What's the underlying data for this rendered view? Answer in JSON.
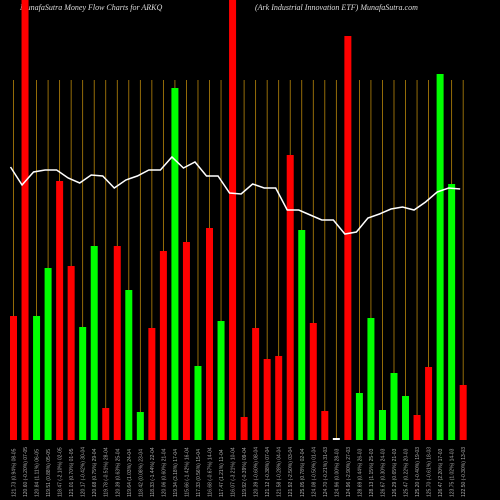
{
  "chart_data": {
    "type": "bar",
    "title": "MunafaSutra  Money Flow  Charts for ARKQ",
    "subtitle": "(Ark Industrial Innovation  ETF) MunafaSutra.com",
    "categories": [
      "121.73 (0.94%) 08-05",
      "120.60 (-0.20%) 07-05",
      "120.84 (1.11%) 06-05",
      "119.51 (0.88%) 05-05",
      "118.47 (-2.10%) 02-05",
      "121.01 (0.70%) 01-05",
      "120.17 (-0.42%) 30-04",
      "120.68 (0.75%) 29-04",
      "119.78 (-0.51%) 28-04",
      "120.39 (0.63%) 25-04",
      "119.64 (1.03%) 24-04",
      "118.42 (0.08%) 23-04",
      "118.33 (-1.44%) 22-04",
      "120.06 (0.60%) 21-04",
      "119.34 (3.18%) 17-04",
      "115.66 (-1.42%) 16-04",
      "117.33 (0.56%) 15-04",
      "116.68 (-0.67%) 14-04",
      "117.47 (1.21%) 11-04",
      "116.07 (-3.21%) 10-04",
      "119.92 (-0.39%) 09-04",
      "120.39 (-0.60%) 08-04",
      "121.12 (-0.38%) 07-04",
      "121.58 (-0.28%) 04-04",
      "121.92 (-2.50%) 03-04",
      "125.05 (0.78%) 02-04",
      "124.08 (-0.50%) 01-04",
      "124.70 (-0.21%) 31-03",
      "124.96 (0.00%) 28-03",
      "124.96 (-2.90%) 27-03",
      "128.69 (0.44%) 26-03",
      "128.13 (1.15%) 25-03",
      "126.67 (0.30%) 24-03",
      "126.29 (0.65%) 21-03",
      "125.47 (0.22%) 20-03",
      "125.20 (-0.40%) 19-03",
      "125.70 (-0.61%) 18-03",
      "126.47 (2.20%) 17-03",
      "123.75 (1.02%) 14-03",
      "122.50 (-0.30%) 13-03"
    ],
    "values": [
      124,
      440,
      124,
      172,
      259,
      174,
      113,
      194,
      32,
      194,
      150,
      28,
      112,
      189,
      352,
      198,
      74,
      212,
      119,
      440,
      23,
      112,
      81,
      84,
      285,
      210,
      117,
      29,
      2,
      404,
      47,
      122,
      30,
      67,
      44,
      25,
      73,
      366,
      256,
      55
    ],
    "colors": [
      "#ff0000",
      "#ff0000",
      "#00ff00",
      "#00ff00",
      "#ff0000",
      "#ff0000",
      "#00ff00",
      "#00ff00",
      "#ff0000",
      "#ff0000",
      "#00ff00",
      "#00ff00",
      "#ff0000",
      "#ff0000",
      "#00ff00",
      "#ff0000",
      "#00ff00",
      "#ff0000",
      "#00ff00",
      "#ff0000",
      "#ff0000",
      "#ff0000",
      "#ff0000",
      "#ff0000",
      "#ff0000",
      "#00ff00",
      "#ff0000",
      "#ff0000",
      "#ffffff",
      "#ff0000",
      "#00ff00",
      "#00ff00",
      "#00ff00",
      "#00ff00",
      "#00ff00",
      "#ff0000",
      "#ff0000",
      "#00ff00",
      "#00ff00",
      "#ff0000"
    ],
    "line": {
      "color": "#ffffff",
      "values": [
        273,
        255,
        268,
        270,
        270,
        262,
        257,
        265,
        264,
        252,
        260,
        264,
        270,
        270,
        283,
        272,
        278,
        264,
        264,
        247,
        246,
        256,
        252,
        252,
        230,
        230,
        225,
        220,
        220,
        206,
        208,
        222,
        226,
        231,
        233,
        230,
        238,
        248,
        252,
        251
      ]
    },
    "ylim": [
      0,
      440
    ],
    "gridline_color": "#b8860b"
  }
}
